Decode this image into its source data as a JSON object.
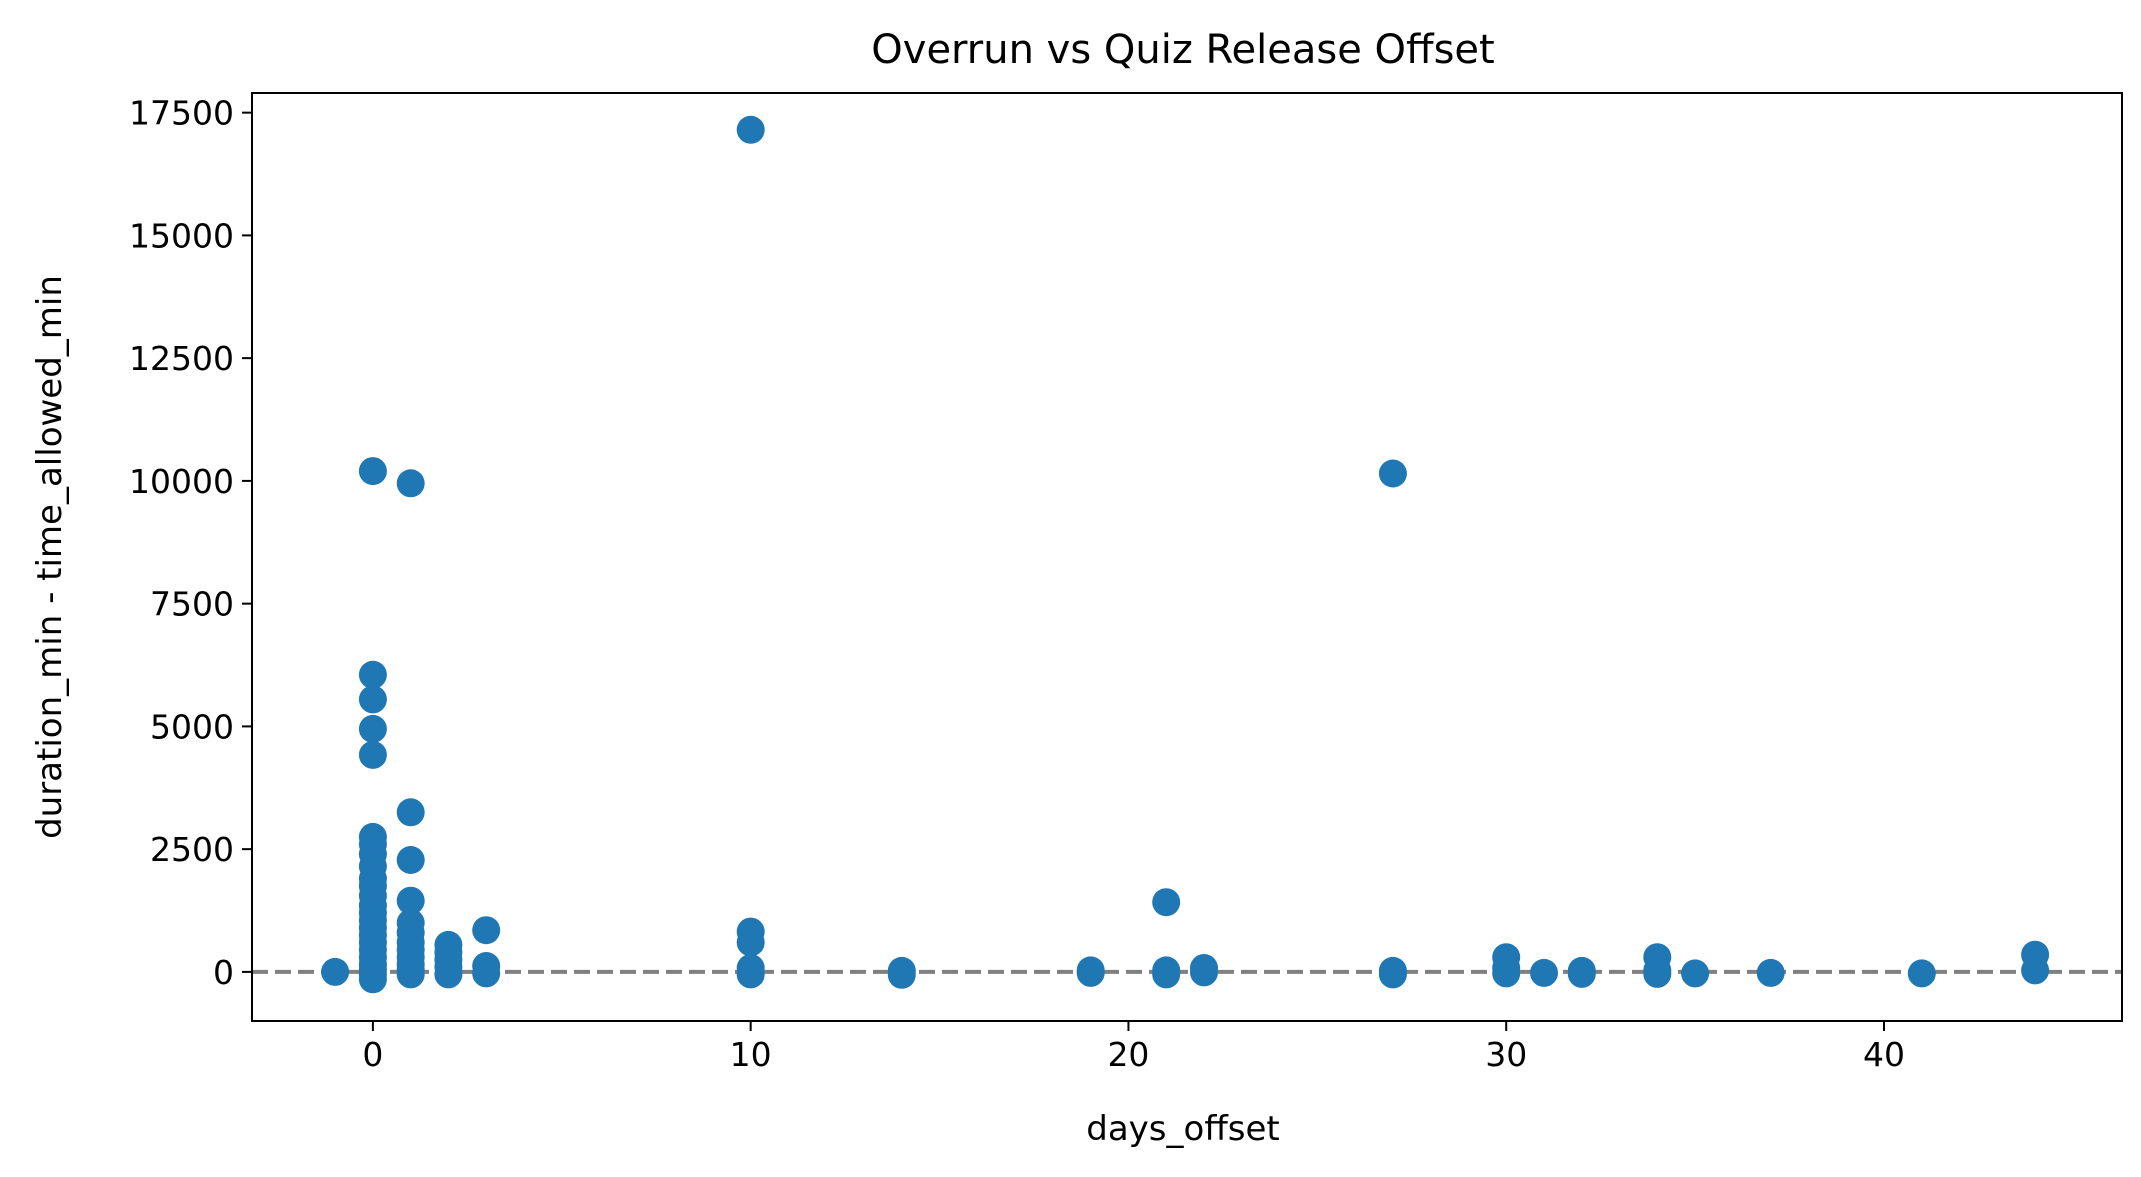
{
  "chart_data": {
    "type": "scatter",
    "title": "Overrun vs Quiz Release Offset",
    "xlabel": "days_offset",
    "ylabel": "duration_min - time_allowed_min",
    "xlim": [
      -3.2,
      46.3
    ],
    "ylim": [
      -1000,
      17900
    ],
    "xticks": [
      0,
      10,
      20,
      30,
      40
    ],
    "yticks": [
      0,
      2500,
      5000,
      7500,
      10000,
      12500,
      15000,
      17500
    ],
    "grid": false,
    "legend": "none",
    "marker_color": "#1f77b4",
    "reference_line": {
      "y": 0,
      "style": "dashed",
      "color": "#808080"
    },
    "points": [
      {
        "x": -1,
        "y": 0
      },
      {
        "x": 0,
        "y": 10200
      },
      {
        "x": 0,
        "y": 6050
      },
      {
        "x": 0,
        "y": 5550
      },
      {
        "x": 0,
        "y": 4950
      },
      {
        "x": 0,
        "y": 4420
      },
      {
        "x": 0,
        "y": 2750
      },
      {
        "x": 0,
        "y": 2600
      },
      {
        "x": 0,
        "y": 2400
      },
      {
        "x": 0,
        "y": 2150
      },
      {
        "x": 0,
        "y": 1900
      },
      {
        "x": 0,
        "y": 1750
      },
      {
        "x": 0,
        "y": 1550
      },
      {
        "x": 0,
        "y": 1350
      },
      {
        "x": 0,
        "y": 1200
      },
      {
        "x": 0,
        "y": 1050
      },
      {
        "x": 0,
        "y": 900
      },
      {
        "x": 0,
        "y": 750
      },
      {
        "x": 0,
        "y": 600
      },
      {
        "x": 0,
        "y": 450
      },
      {
        "x": 0,
        "y": 300
      },
      {
        "x": 0,
        "y": 150
      },
      {
        "x": 0,
        "y": 50
      },
      {
        "x": 0,
        "y": -50
      },
      {
        "x": 0,
        "y": -150
      },
      {
        "x": 1,
        "y": 9950
      },
      {
        "x": 1,
        "y": 3250
      },
      {
        "x": 1,
        "y": 2280
      },
      {
        "x": 1,
        "y": 1450
      },
      {
        "x": 1,
        "y": 1000
      },
      {
        "x": 1,
        "y": 800
      },
      {
        "x": 1,
        "y": 600
      },
      {
        "x": 1,
        "y": 450
      },
      {
        "x": 1,
        "y": 300
      },
      {
        "x": 1,
        "y": 150
      },
      {
        "x": 1,
        "y": 50
      },
      {
        "x": 1,
        "y": -50
      },
      {
        "x": 2,
        "y": 550
      },
      {
        "x": 2,
        "y": 400
      },
      {
        "x": 2,
        "y": 250
      },
      {
        "x": 2,
        "y": 100
      },
      {
        "x": 2,
        "y": -50
      },
      {
        "x": 3,
        "y": 850
      },
      {
        "x": 3,
        "y": 120
      },
      {
        "x": 3,
        "y": -30
      },
      {
        "x": 10,
        "y": 17150
      },
      {
        "x": 10,
        "y": 820
      },
      {
        "x": 10,
        "y": 600
      },
      {
        "x": 10,
        "y": 80
      },
      {
        "x": 10,
        "y": -50
      },
      {
        "x": 14,
        "y": 20
      },
      {
        "x": 14,
        "y": -60
      },
      {
        "x": 19,
        "y": 30
      },
      {
        "x": 19,
        "y": -20
      },
      {
        "x": 21,
        "y": 1420
      },
      {
        "x": 21,
        "y": 30
      },
      {
        "x": 21,
        "y": -50
      },
      {
        "x": 22,
        "y": 80
      },
      {
        "x": 22,
        "y": -10
      },
      {
        "x": 27,
        "y": 10150
      },
      {
        "x": 27,
        "y": 20
      },
      {
        "x": 27,
        "y": -50
      },
      {
        "x": 30,
        "y": 300
      },
      {
        "x": 30,
        "y": 80
      },
      {
        "x": 30,
        "y": -30
      },
      {
        "x": 31,
        "y": -20
      },
      {
        "x": 32,
        "y": 20
      },
      {
        "x": 32,
        "y": -40
      },
      {
        "x": 34,
        "y": 300
      },
      {
        "x": 34,
        "y": 30
      },
      {
        "x": 34,
        "y": -40
      },
      {
        "x": 35,
        "y": -30
      },
      {
        "x": 37,
        "y": -20
      },
      {
        "x": 41,
        "y": -30
      },
      {
        "x": 44,
        "y": 350
      },
      {
        "x": 44,
        "y": 30
      }
    ]
  }
}
